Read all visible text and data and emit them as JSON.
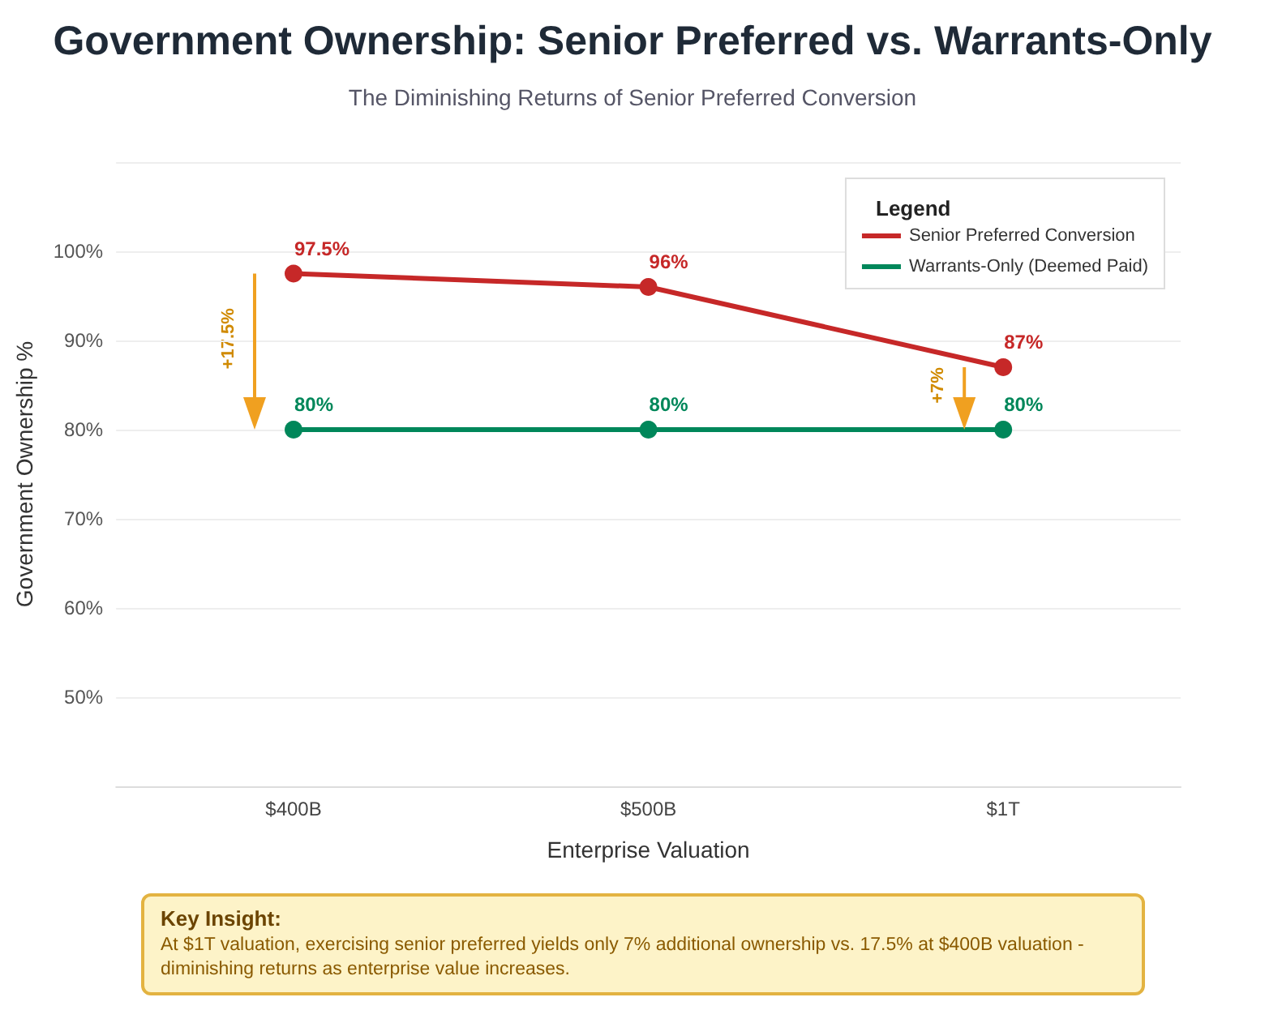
{
  "chart_data": {
    "type": "line",
    "title": "Government Ownership: Senior Preferred vs. Warrants-Only",
    "subtitle": "The Diminishing Returns of Senior Preferred Conversion",
    "xlabel": "Enterprise Valuation",
    "ylabel": "Government Ownership %",
    "legend_title": "Legend",
    "categories": [
      "$400B",
      "$500B",
      "$1T"
    ],
    "series": [
      {
        "name": "Senior Preferred Conversion",
        "color": "#c62828",
        "values": [
          97.5,
          96,
          87
        ],
        "value_labels": [
          "97.5%",
          "96%",
          "87%"
        ]
      },
      {
        "name": "Warrants-Only (Deemed Paid)",
        "color": "#00875a",
        "values": [
          80,
          80,
          80
        ],
        "value_labels": [
          "80%",
          "80%",
          "80%"
        ]
      }
    ],
    "ylim": [
      40,
      110
    ],
    "yticks": [
      {
        "value": 40,
        "label": null
      },
      {
        "value": 50,
        "label": "50%"
      },
      {
        "value": 60,
        "label": "60%"
      },
      {
        "value": 70,
        "label": "70%"
      },
      {
        "value": 80,
        "label": "80%"
      },
      {
        "value": 90,
        "label": "90%"
      },
      {
        "value": 100,
        "label": "100%"
      },
      {
        "value": 110,
        "label": null
      }
    ],
    "grid": "y",
    "legend": "top right",
    "marker": "circle",
    "annotations": [
      "+17.5%",
      "+7%",
      "Key Insight:",
      "At $1T valuation, exercising senior preferred yields only 7% additional ownership vs. 17.5% at $400B valuation - diminishing returns as enterprise value increases."
    ]
  }
}
